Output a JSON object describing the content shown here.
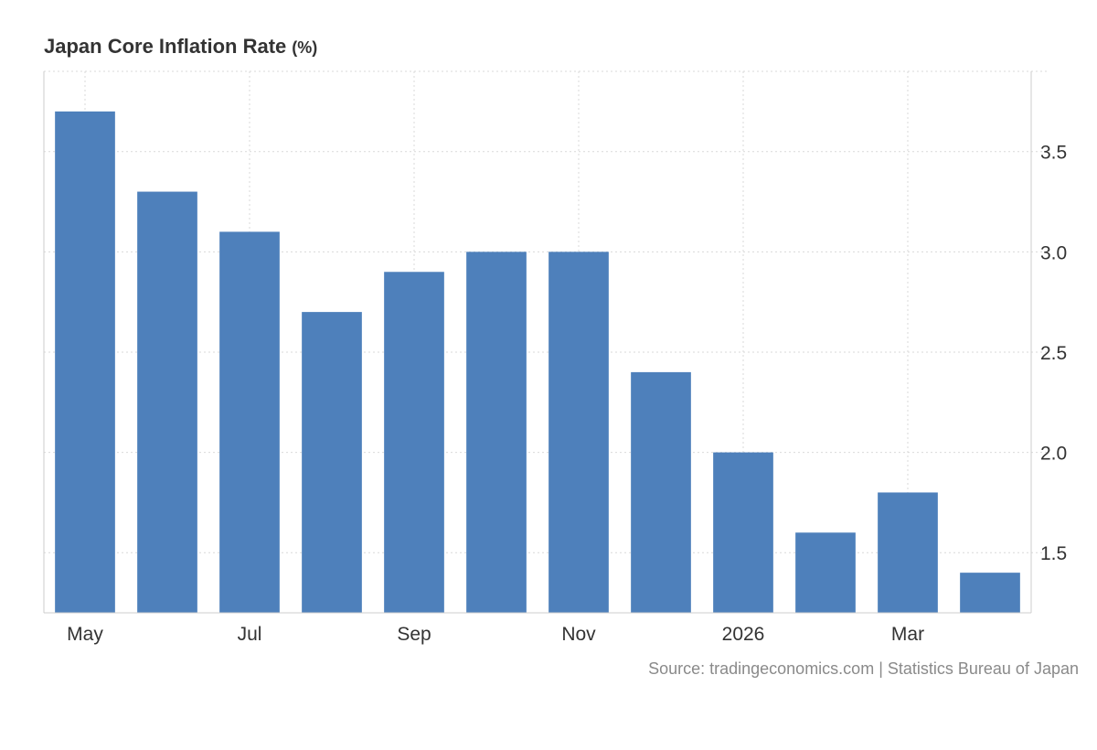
{
  "title": "Japan Core Inflation Rate",
  "unit": "(%)",
  "source": "Source: tradingeconomics.com | Statistics Bureau of Japan",
  "colors": {
    "bar": "#4e80bb",
    "grid": "#d9d9d9",
    "axis": "#cccccc",
    "tick_text": "#333333"
  },
  "chart_data": {
    "type": "bar",
    "categories": [
      "2025-05",
      "2025-06",
      "2025-07",
      "2025-08",
      "2025-09",
      "2025-10",
      "2025-11",
      "2025-12",
      "2026-01",
      "2026-02",
      "2026-03",
      "2026-04"
    ],
    "values": [
      3.7,
      3.3,
      3.1,
      2.7,
      2.9,
      3.0,
      3.0,
      2.4,
      2.0,
      1.6,
      1.8,
      1.4
    ],
    "x_tick_labels": [
      "May",
      "Jul",
      "Sep",
      "Nov",
      "2026",
      "Mar"
    ],
    "x_tick_categories": [
      "2025-05",
      "2025-07",
      "2025-09",
      "2025-11",
      "2026-01",
      "2026-03"
    ],
    "y_ticks": [
      "1.5",
      "2.0",
      "2.5",
      "3.0",
      "3.5"
    ],
    "ylim": [
      1.2,
      3.9
    ],
    "y_axis_side": "right",
    "grid": true,
    "legend": "none",
    "title": "Japan Core Inflation Rate (%)",
    "xlabel": "",
    "ylabel": ""
  }
}
